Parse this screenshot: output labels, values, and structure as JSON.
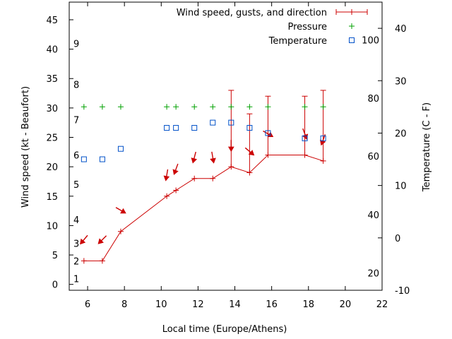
{
  "chart_data": {
    "type": "line",
    "xlabel": "Local time (Europe/Athens)",
    "ylabel": "Wind speed (kt - Beaufort)",
    "y2label": "Temperature (C - F)",
    "xlim": [
      5,
      22
    ],
    "ylim": [
      -1,
      48
    ],
    "y2lim": [
      -10,
      45
    ],
    "x_ticks": [
      6,
      8,
      10,
      12,
      14,
      16,
      18,
      20,
      22
    ],
    "y_ticks": [
      0,
      5,
      10,
      15,
      20,
      25,
      30,
      35,
      40,
      45
    ],
    "y2_ticks": [
      -10,
      0,
      10,
      20,
      30,
      40
    ],
    "beaufort_labels": [
      {
        "text": "1",
        "kt": 1
      },
      {
        "text": "2",
        "kt": 4
      },
      {
        "text": "3",
        "kt": 7
      },
      {
        "text": "4",
        "kt": 11
      },
      {
        "text": "5",
        "kt": 17
      },
      {
        "text": "6",
        "kt": 22
      },
      {
        "text": "7",
        "kt": 28
      },
      {
        "text": "8",
        "kt": 34
      },
      {
        "text": "9",
        "kt": 41
      }
    ],
    "fahrenheit_labels": [
      {
        "text": "20",
        "c": -6.7
      },
      {
        "text": "40",
        "c": 4.4
      },
      {
        "text": "60",
        "c": 15.6
      },
      {
        "text": "80",
        "c": 26.7
      },
      {
        "text": "100",
        "c": 37.8
      }
    ],
    "legend_position": "top-right",
    "series": [
      {
        "name": "Wind speed, gusts, and direction",
        "color": "#cc0000",
        "x": [
          5.8,
          6.8,
          7.8,
          10.3,
          10.8,
          11.8,
          12.8,
          13.8,
          14.8,
          15.8,
          17.8,
          18.8
        ],
        "values": [
          4,
          4,
          9,
          15,
          16,
          18,
          18,
          20,
          19,
          22,
          22,
          21
        ],
        "gusts": [
          null,
          null,
          null,
          null,
          null,
          null,
          null,
          33,
          29,
          32,
          32,
          33
        ],
        "direction_deg": [
          40,
          45,
          300,
          10,
          20,
          15,
          350,
          360,
          310,
          300,
          340,
          20
        ]
      },
      {
        "name": "Pressure",
        "color": "#00a000",
        "x": [
          5.8,
          6.8,
          7.8,
          10.3,
          10.8,
          11.8,
          12.8,
          13.8,
          14.8,
          15.8,
          17.8,
          18.8
        ],
        "values": [
          30.2,
          30.2,
          30.2,
          30.2,
          30.2,
          30.2,
          30.2,
          30.2,
          30.2,
          30.2,
          30.2,
          30.2
        ]
      },
      {
        "name": "Temperature",
        "color": "#0050c8",
        "x": [
          5.8,
          6.8,
          7.8,
          10.3,
          10.8,
          11.8,
          12.8,
          13.8,
          14.8,
          15.8,
          17.8,
          18.8
        ],
        "values": [
          15,
          15,
          17,
          21,
          21,
          21,
          22,
          22,
          21,
          20,
          19,
          19
        ]
      }
    ]
  }
}
